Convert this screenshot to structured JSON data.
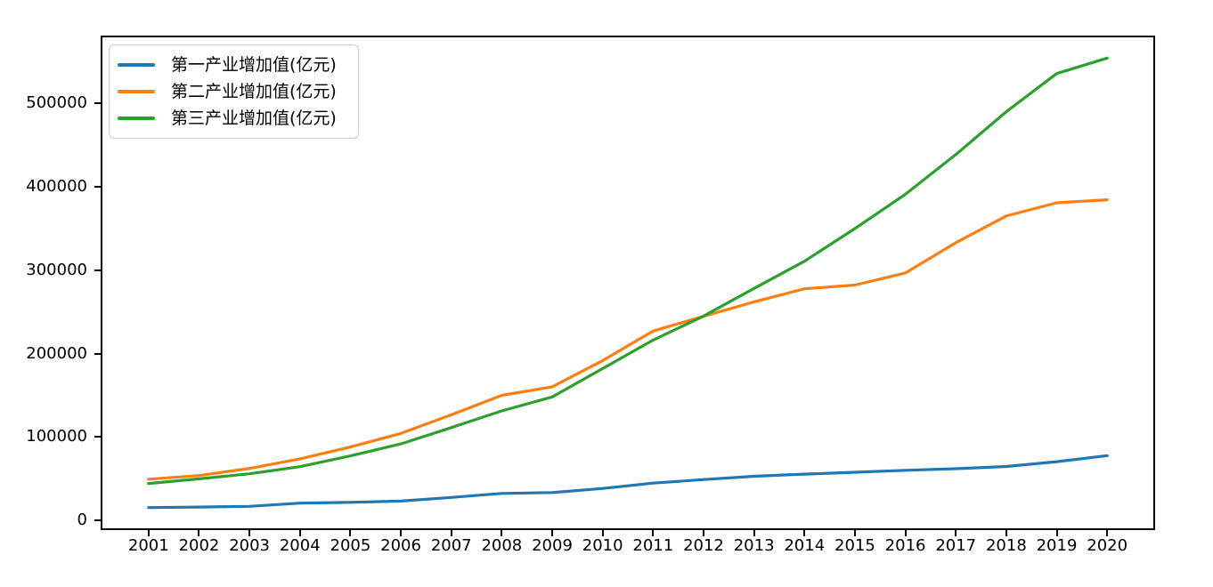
{
  "figure": {
    "background": "#ffffff",
    "axis_color": "#000000"
  },
  "chart_data": {
    "type": "line",
    "title": "",
    "xlabel": "",
    "ylabel": "",
    "grid": false,
    "legend_position": "upper left",
    "x": [
      2001,
      2002,
      2003,
      2004,
      2005,
      2006,
      2007,
      2008,
      2009,
      2010,
      2011,
      2012,
      2013,
      2014,
      2015,
      2016,
      2017,
      2018,
      2019,
      2020
    ],
    "x_ticks": [
      2001,
      2002,
      2003,
      2004,
      2005,
      2006,
      2007,
      2008,
      2009,
      2010,
      2011,
      2012,
      2013,
      2014,
      2015,
      2016,
      2017,
      2018,
      2019,
      2020
    ],
    "y_ticks": [
      0,
      100000,
      200000,
      300000,
      400000,
      500000
    ],
    "xlim": [
      2000.05,
      2020.95
    ],
    "ylim": [
      -11421.2,
      580900.5
    ],
    "series": [
      {
        "name": "第一产业增加值(亿元)",
        "color": "#1f77b4",
        "values": [
          15502.5,
          16190.2,
          16970.2,
          20904.3,
          21806.7,
          23317.0,
          27674.1,
          32464.1,
          33583.8,
          38430.8,
          44781.5,
          49084.5,
          53028.1,
          55626.3,
          57774.6,
          60139.2,
          62099.5,
          64745.2,
          70473.6,
          77754.1
        ]
      },
      {
        "name": "第二产业增加值(亿元)",
        "color": "#ff7f0e",
        "values": [
          49512.3,
          53896.8,
          62436.3,
          73904.3,
          88084.4,
          104361.8,
          126633.6,
          149956.6,
          160171.7,
          191629.8,
          227038.8,
          244643.3,
          261956.1,
          277571.8,
          282040.3,
          296547.7,
          332742.7,
          364835.2,
          380670.6,
          384255.3
        ]
      },
      {
        "name": "第三产业增加值(亿元)",
        "color": "#2ca02c",
        "values": [
          44361.6,
          49898.9,
          56004.7,
          64561.3,
          77427.8,
          91759.7,
          111351.9,
          131340.0,
          148038.0,
          182059.0,
          216123.6,
          244856.2,
          277983.5,
          310654.4,
          349744.7,
          390828.1,
          438355.9,
          489700.8,
          535371.0,
          553976.8
        ]
      }
    ]
  }
}
